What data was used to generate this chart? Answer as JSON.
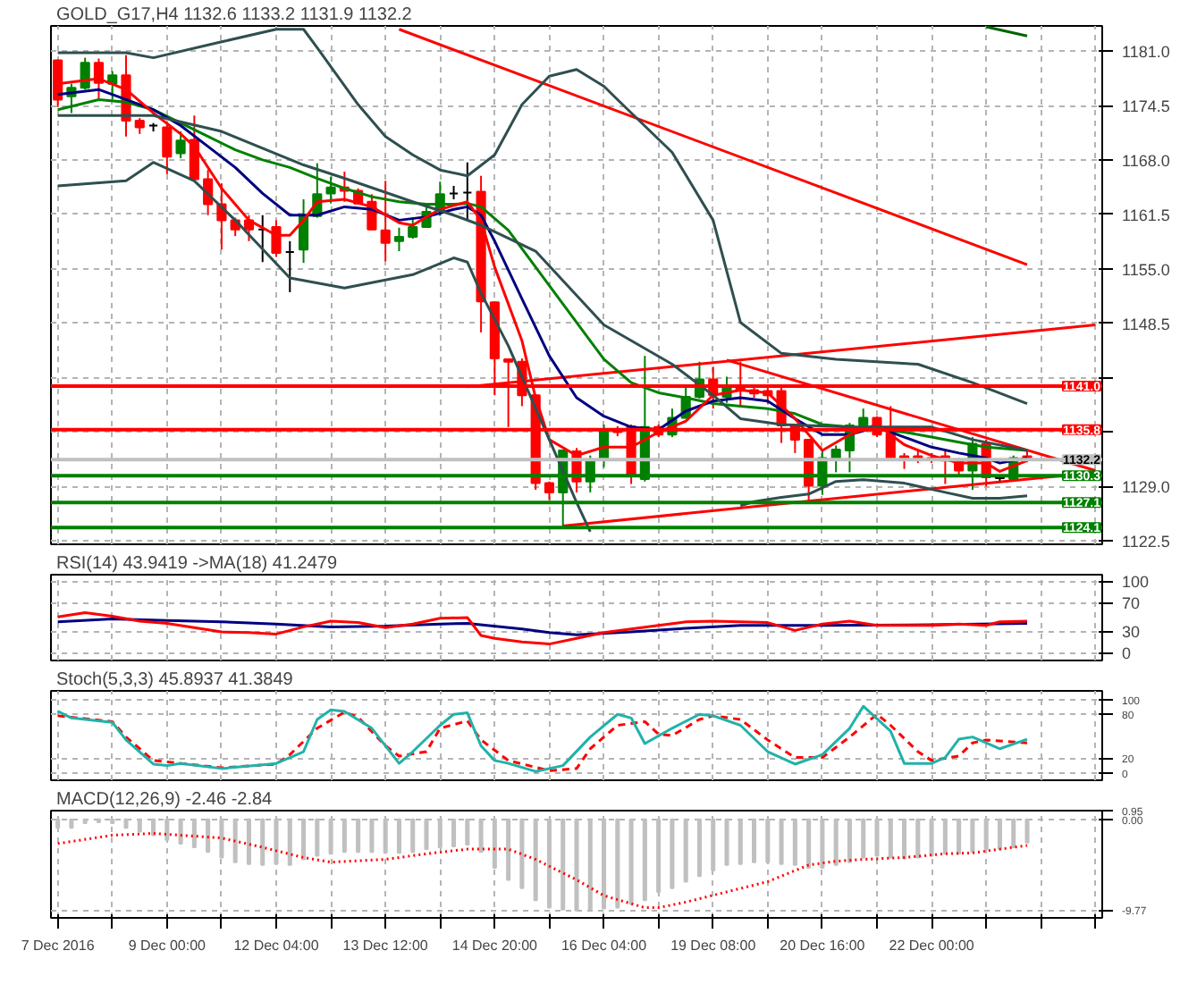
{
  "chart_data": [
    {
      "type": "candlestick",
      "title": "GOLD_G17,H4  1132.6 1133.2 1131.9 1132.2",
      "ohlc": [
        [
          1179.9,
          1180.0,
          1174.3,
          1175.2
        ],
        [
          1175.6,
          1177.1,
          1173.6,
          1176.6
        ],
        [
          1176.6,
          1180.2,
          1176.4,
          1179.6
        ],
        [
          1179.6,
          1180.1,
          1175.3,
          1177.2
        ],
        [
          1177.1,
          1178.6,
          1175.2,
          1178.1
        ],
        [
          1178.1,
          1180.5,
          1170.8,
          1172.7
        ],
        [
          1172.7,
          1173.0,
          1171.1,
          1171.9
        ],
        [
          1172.1,
          1172.4,
          1171.4,
          1172.1
        ],
        [
          1171.9,
          1172.4,
          1166.3,
          1168.4
        ],
        [
          1168.8,
          1171.4,
          1168.2,
          1170.3
        ],
        [
          1170.4,
          1173.3,
          1165.5,
          1165.7
        ],
        [
          1165.7,
          1166.8,
          1161.4,
          1162.7
        ],
        [
          1162.7,
          1165.2,
          1157.3,
          1160.8
        ],
        [
          1160.8,
          1161.1,
          1158.9,
          1159.7
        ],
        [
          1160.8,
          1161.4,
          1158.3,
          1159.7
        ],
        [
          1159.7,
          1161.4,
          1155.8,
          1159.7
        ],
        [
          1160.0,
          1160.8,
          1156.4,
          1156.9
        ],
        [
          1157.0,
          1158.3,
          1152.2,
          1157.0
        ],
        [
          1157.3,
          1163.3,
          1155.7,
          1161.3
        ],
        [
          1161.3,
          1167.6,
          1161.1,
          1163.9
        ],
        [
          1164.0,
          1166.0,
          1162.8,
          1164.7
        ],
        [
          1164.7,
          1166.6,
          1163.0,
          1164.3
        ],
        [
          1164.3,
          1164.6,
          1162.7,
          1162.8
        ],
        [
          1163.0,
          1163.9,
          1159.6,
          1159.7
        ],
        [
          1159.6,
          1165.5,
          1155.9,
          1158.1
        ],
        [
          1158.3,
          1159.9,
          1157.1,
          1158.8
        ],
        [
          1158.8,
          1161.1,
          1158.6,
          1160.0
        ],
        [
          1160.0,
          1162.7,
          1159.9,
          1161.8
        ],
        [
          1161.9,
          1165.4,
          1161.3,
          1163.9
        ],
        [
          1164.0,
          1164.9,
          1163.3,
          1164.0
        ],
        [
          1164.1,
          1167.7,
          1160.8,
          1164.1
        ],
        [
          1164.2,
          1166.1,
          1147.4,
          1151.1
        ],
        [
          1151.0,
          1151.1,
          1139.9,
          1144.3
        ],
        [
          1144.2,
          1144.3,
          1136.1,
          1143.9
        ],
        [
          1143.9,
          1144.3,
          1138.6,
          1139.9
        ],
        [
          1139.9,
          1139.9,
          1128.6,
          1129.4
        ],
        [
          1129.4,
          1129.6,
          1127.4,
          1128.3
        ],
        [
          1128.3,
          1133.3,
          1124.2,
          1133.3
        ],
        [
          1133.2,
          1133.6,
          1128.3,
          1129.6
        ],
        [
          1129.6,
          1132.7,
          1128.3,
          1132.2
        ],
        [
          1132.2,
          1136.4,
          1131.3,
          1135.8
        ],
        [
          1135.8,
          1136.2,
          1135.0,
          1135.5
        ],
        [
          1136.2,
          1136.4,
          1129.3,
          1130.2
        ],
        [
          1129.9,
          1144.6,
          1129.6,
          1136.1
        ],
        [
          1136.1,
          1136.4,
          1134.9,
          1135.2
        ],
        [
          1135.2,
          1138.3,
          1134.9,
          1137.2
        ],
        [
          1137.2,
          1140.8,
          1137.1,
          1139.7
        ],
        [
          1139.7,
          1143.9,
          1139.5,
          1141.8
        ],
        [
          1141.8,
          1143.3,
          1138.3,
          1139.9
        ],
        [
          1139.7,
          1142.1,
          1139.0,
          1141.1
        ],
        [
          1141.0,
          1143.9,
          1138.6,
          1140.5
        ],
        [
          1140.5,
          1141.1,
          1139.6,
          1140.1
        ],
        [
          1140.4,
          1141.1,
          1138.9,
          1139.9
        ],
        [
          1140.4,
          1140.8,
          1134.2,
          1136.3
        ],
        [
          1136.3,
          1136.4,
          1133.0,
          1134.6
        ],
        [
          1134.6,
          1134.7,
          1127.2,
          1129.1
        ],
        [
          1129.1,
          1133.3,
          1128.0,
          1132.4
        ],
        [
          1132.4,
          1133.9,
          1130.7,
          1133.4
        ],
        [
          1133.3,
          1136.6,
          1130.7,
          1136.3
        ],
        [
          1136.3,
          1138.3,
          1136.1,
          1137.2
        ],
        [
          1137.2,
          1137.4,
          1134.9,
          1135.2
        ],
        [
          1135.3,
          1138.6,
          1132.1,
          1132.4
        ],
        [
          1132.6,
          1133.0,
          1131.1,
          1132.4
        ],
        [
          1132.6,
          1133.2,
          1131.8,
          1132.2
        ],
        [
          1132.4,
          1133.0,
          1131.8,
          1132.2
        ],
        [
          1132.6,
          1133.4,
          1129.3,
          1132.1
        ],
        [
          1132.1,
          1132.4,
          1130.3,
          1130.9
        ],
        [
          1130.9,
          1134.9,
          1128.6,
          1134.1
        ],
        [
          1134.1,
          1134.6,
          1129.0,
          1130.1
        ],
        [
          1130.0,
          1130.2,
          1129.6,
          1130.1
        ],
        [
          1129.9,
          1132.7,
          1129.6,
          1132.4
        ],
        [
          1132.6,
          1133.2,
          1131.9,
          1132.2
        ],
        null,
        null,
        null,
        null,
        null
      ],
      "colors": [
        "#ff0000",
        "#008000",
        "#008000",
        "#ff0000",
        "#008000",
        "#ff0000",
        "#ff0000",
        "#000000",
        "#ff0000",
        "#008000",
        "#ff0000",
        "#ff0000",
        "#ff0000",
        "#ff0000",
        "#ff0000",
        "#000000",
        "#ff0000",
        "#000000",
        "#008000",
        "#008000",
        "#008000",
        "#ff0000",
        "#ff0000",
        "#ff0000",
        "#ff0000",
        "#008000",
        "#008000",
        "#008000",
        "#008000",
        "#000000",
        "#000000",
        "#ff0000",
        "#ff0000",
        "#ff0000",
        "#ff0000",
        "#ff0000",
        "#ff0000",
        "#008000",
        "#ff0000",
        "#008000",
        "#008000",
        "#ff0000",
        "#ff0000",
        "#008000",
        "#ff0000",
        "#008000",
        "#008000",
        "#008000",
        "#ff0000",
        "#008000",
        "#ff0000",
        "#ff0000",
        "#ff0000",
        "#ff0000",
        "#ff0000",
        "#ff0000",
        "#008000",
        "#008000",
        "#008000",
        "#008000",
        "#ff0000",
        "#ff0000",
        "#ff0000",
        "#ff0000",
        "#ff0000",
        "#ff0000",
        "#ff0000",
        "#008000",
        "#ff0000",
        "#000000",
        "#008000",
        "#ff0000",
        null,
        null,
        null,
        null,
        null
      ],
      "series": [
        {
          "type": "line",
          "color": "#2f4f4f",
          "values": [
            1180.8,
            null,
            null,
            null,
            null,
            1180.8,
            null,
            1180.2,
            null,
            null,
            null,
            null,
            1182.1,
            null,
            null,
            null,
            1183.6,
            null,
            1183.6,
            1181.4,
            null,
            null,
            1174.6,
            null,
            1170.8,
            null,
            1168.6,
            null,
            1166.8,
            null,
            1166.1,
            null,
            1168.6,
            null,
            1174.6,
            null,
            1178.0,
            null,
            1178.8,
            null,
            1176.8,
            1175.2,
            null,
            null,
            null,
            1168.9,
            null,
            null,
            1160.8,
            null,
            1148.6,
            null,
            null,
            1144.9,
            null,
            null,
            null,
            1144.2,
            null,
            null,
            null,
            null,
            null,
            1143.6,
            null,
            null,
            null,
            1141.4,
            null,
            null,
            null,
            1138.9,
            null,
            null,
            null,
            null,
            null
          ]
        },
        {
          "type": "line",
          "color": "#2f4f4f",
          "values": [
            1173.3,
            null,
            null,
            null,
            null,
            null,
            null,
            1173.3,
            null,
            null,
            null,
            null,
            1171.4,
            null,
            null,
            null,
            null,
            null,
            1167.4,
            null,
            null,
            1165.8,
            null,
            null,
            null,
            null,
            1163.0,
            null,
            null,
            1161.4,
            null,
            1160.2,
            null,
            null,
            null,
            1157.1,
            null,
            null,
            null,
            null,
            1148.3,
            null,
            null,
            null,
            null,
            1143.6,
            null,
            null,
            1139.9,
            null,
            1137.1,
            null,
            null,
            1136.4,
            null,
            null,
            null,
            null,
            1136.1,
            null,
            null,
            null,
            null,
            null,
            1136.1,
            null,
            null,
            1134.6,
            null,
            null,
            null,
            1133.3,
            null,
            null,
            null,
            null,
            null
          ]
        },
        {
          "type": "line",
          "color": "#2f4f4f",
          "values": [
            1164.9,
            null,
            null,
            null,
            null,
            1165.5,
            null,
            1167.7,
            null,
            null,
            1165.5,
            null,
            null,
            1160.8,
            null,
            null,
            null,
            1153.9,
            null,
            null,
            null,
            1152.7,
            null,
            null,
            null,
            null,
            1154.3,
            null,
            null,
            1156.3,
            1155.8,
            1152.1,
            null,
            1145.8,
            null,
            null,
            1134.6,
            null,
            1127.1,
            1123.6,
            null,
            null,
            null,
            null,
            null,
            null,
            null,
            null,
            null,
            null,
            null,
            null,
            null,
            null,
            null,
            null,
            null,
            null,
            null,
            null,
            null,
            null,
            null,
            null,
            null,
            null,
            null,
            null,
            null,
            null,
            null,
            null,
            null,
            null,
            null,
            null,
            null
          ]
        },
        {
          "type": "line",
          "color": "#2f4f4f",
          "values": [
            null,
            null,
            null,
            null,
            null,
            null,
            null,
            null,
            null,
            null,
            null,
            null,
            null,
            null,
            null,
            null,
            null,
            null,
            null,
            null,
            null,
            null,
            null,
            null,
            null,
            null,
            null,
            null,
            null,
            null,
            null,
            null,
            null,
            null,
            null,
            null,
            null,
            null,
            null,
            null,
            null,
            null,
            null,
            null,
            null,
            null,
            null,
            null,
            null,
            null,
            1126.7,
            1127.2,
            null,
            1127.7,
            null,
            1128.1,
            null,
            1129.6,
            null,
            1129.8,
            null,
            null,
            1129.4,
            null,
            null,
            1128.3,
            null,
            1127.6,
            null,
            1127.6,
            null,
            1127.9,
            null,
            null,
            null,
            null,
            null
          ]
        },
        {
          "type": "line",
          "color": "#ff0000",
          "values": [
            1177.1,
            null,
            null,
            1177.7,
            null,
            1176.4,
            null,
            1173.6,
            null,
            1171.1,
            1169.6,
            null,
            1164.6,
            null,
            1160.8,
            null,
            1159.0,
            1159.0,
            1160.8,
            1163.0,
            null,
            1163.3,
            null,
            1162.4,
            null,
            1160.5,
            1160.2,
            1161.2,
            1162.1,
            null,
            1163.0,
            1160.8,
            1155.2,
            null,
            1146.4,
            1139.6,
            1134.6,
            null,
            1132.7,
            null,
            1133.7,
            null,
            1133.7,
            null,
            1135.5,
            null,
            1136.8,
            null,
            1139.9,
            null,
            1140.5,
            null,
            1140.2,
            null,
            1137.1,
            null,
            1133.3,
            null,
            1135.2,
            null,
            1136.4,
            null,
            1134.0,
            null,
            1132.7,
            null,
            1131.8,
            null,
            1131.8,
            1130.8,
            null,
            1132.1,
            null,
            null,
            null,
            null,
            null
          ]
        },
        {
          "type": "line",
          "color": "#000080",
          "values": [
            1175.8,
            null,
            null,
            1176.4,
            null,
            1175.2,
            null,
            1174.0,
            null,
            1172.1,
            null,
            1169.6,
            null,
            1167.1,
            null,
            1164.0,
            null,
            1161.4,
            null,
            1161.4,
            null,
            1162.4,
            null,
            1162.1,
            null,
            1160.8,
            null,
            1161.2,
            null,
            1162.1,
            1162.4,
            1161.4,
            1158.3,
            null,
            1151.4,
            null,
            1144.6,
            null,
            1139.6,
            null,
            1137.4,
            null,
            1136.1,
            null,
            1135.8,
            null,
            1138.0,
            null,
            1139.2,
            null,
            1139.6,
            null,
            1139.2,
            null,
            1137.1,
            null,
            1135.2,
            null,
            1135.2,
            null,
            1136.1,
            null,
            1134.9,
            null,
            1133.7,
            null,
            1133.0,
            null,
            1132.4,
            1131.8,
            null,
            1132.4,
            null,
            null,
            null,
            null,
            null
          ]
        },
        {
          "type": "line",
          "color": "#008000",
          "values": [
            1174.0,
            null,
            null,
            1175.2,
            null,
            1174.9,
            null,
            1174.0,
            null,
            1172.4,
            null,
            1170.8,
            null,
            1169.2,
            null,
            1168.0,
            null,
            1167.1,
            null,
            1165.8,
            null,
            1164.6,
            null,
            1163.6,
            null,
            1163.0,
            null,
            1162.7,
            null,
            1162.7,
            1162.8,
            1162.4,
            null,
            1159.6,
            null,
            1155.2,
            null,
            1150.8,
            null,
            1146.4,
            1144.2,
            null,
            1141.4,
            null,
            1140.2,
            null,
            1139.6,
            null,
            1138.9,
            null,
            1138.6,
            null,
            1138.3,
            null,
            1137.7,
            null,
            1136.4,
            null,
            1136.1,
            null,
            1135.8,
            null,
            1135.5,
            null,
            1134.9,
            null,
            1134.3,
            null,
            1133.7,
            null,
            null,
            1133.3,
            null,
            null,
            null,
            null,
            null
          ]
        },
        {
          "type": "line",
          "color": "#ff0000",
          "values": [
            null,
            null,
            null,
            null,
            null,
            null,
            null,
            null,
            null,
            null,
            null,
            null,
            null,
            null,
            null,
            null,
            null,
            null,
            null,
            null,
            null,
            null,
            null,
            null,
            null,
            1183.6,
            null,
            null,
            null,
            null,
            null,
            null,
            null,
            null,
            null,
            null,
            null,
            null,
            null,
            null,
            null,
            null,
            null,
            null,
            null,
            null,
            null,
            null,
            null,
            null,
            null,
            null,
            null,
            null,
            null,
            null,
            null,
            null,
            null,
            null,
            null,
            null,
            null,
            null,
            null,
            null,
            null,
            null,
            null,
            null,
            null,
            1155.5,
            null,
            null,
            null,
            null,
            null
          ]
        },
        {
          "type": "line",
          "color": "#ff0000",
          "values": [
            null,
            null,
            null,
            null,
            null,
            null,
            null,
            null,
            null,
            null,
            null,
            null,
            null,
            null,
            null,
            null,
            null,
            null,
            null,
            null,
            null,
            null,
            null,
            null,
            null,
            null,
            null,
            null,
            null,
            null,
            null,
            null,
            null,
            null,
            null,
            null,
            null,
            1124.3,
            null,
            null,
            null,
            null,
            null,
            null,
            null,
            null,
            null,
            null,
            null,
            null,
            null,
            null,
            null,
            null,
            null,
            null,
            null,
            null,
            null,
            null,
            null,
            null,
            null,
            null,
            null,
            null,
            null,
            null,
            null,
            null,
            null,
            null,
            null,
            null,
            null,
            null,
            1130.7
          ]
        },
        {
          "type": "line",
          "color": "#ff0000",
          "values": [
            null,
            null,
            null,
            null,
            null,
            null,
            null,
            null,
            null,
            null,
            null,
            null,
            null,
            null,
            null,
            null,
            null,
            null,
            null,
            null,
            null,
            null,
            null,
            null,
            null,
            null,
            null,
            null,
            null,
            null,
            1140.9,
            null,
            null,
            null,
            null,
            null,
            null,
            null,
            null,
            null,
            null,
            null,
            null,
            null,
            null,
            null,
            null,
            null,
            null,
            null,
            null,
            null,
            null,
            null,
            null,
            null,
            null,
            null,
            null,
            null,
            null,
            null,
            null,
            null,
            null,
            null,
            null,
            null,
            null,
            null,
            null,
            null,
            null,
            null,
            null,
            null,
            1148.3
          ]
        },
        {
          "type": "line",
          "color": "#ff0000",
          "values": [
            null,
            null,
            null,
            null,
            null,
            null,
            null,
            null,
            null,
            null,
            null,
            null,
            null,
            null,
            null,
            null,
            null,
            null,
            null,
            null,
            null,
            null,
            null,
            null,
            null,
            null,
            null,
            null,
            null,
            null,
            null,
            null,
            null,
            null,
            null,
            null,
            null,
            null,
            null,
            null,
            null,
            null,
            null,
            null,
            null,
            null,
            null,
            null,
            null,
            1144.1,
            null,
            null,
            null,
            null,
            null,
            null,
            null,
            null,
            null,
            null,
            null,
            null,
            null,
            null,
            null,
            null,
            null,
            null,
            null,
            null,
            null,
            null,
            null,
            null,
            null,
            null,
            1130.9
          ]
        },
        {
          "type": "line",
          "color": "#006400",
          "values": [
            null,
            null,
            null,
            null,
            null,
            null,
            null,
            null,
            null,
            null,
            null,
            null,
            null,
            null,
            null,
            null,
            null,
            null,
            null,
            null,
            null,
            null,
            null,
            null,
            null,
            null,
            null,
            null,
            null,
            null,
            null,
            null,
            null,
            null,
            null,
            null,
            null,
            null,
            null,
            null,
            null,
            null,
            null,
            null,
            null,
            null,
            null,
            null,
            null,
            null,
            null,
            null,
            null,
            null,
            null,
            null,
            null,
            null,
            null,
            null,
            null,
            null,
            null,
            null,
            null,
            null,
            null,
            null,
            1183.9,
            null,
            null,
            1182.8,
            null,
            null,
            null,
            null,
            null
          ]
        }
      ],
      "ref_lines": [
        {
          "axis": "y",
          "value": 1141.0,
          "label": "1141.0",
          "color": "#ff0000"
        },
        {
          "axis": "y",
          "value": 1135.8,
          "label": "1135.8",
          "color": "#ff0000"
        },
        {
          "axis": "y",
          "value": 1132.2,
          "label": "1132.2",
          "color": "#c0c0c0"
        },
        {
          "axis": "y",
          "value": 1130.3,
          "label": "1130.3",
          "color": "#008000"
        },
        {
          "axis": "y",
          "value": 1127.1,
          "label": "1127.1",
          "color": "#008000"
        },
        {
          "axis": "y",
          "value": 1124.1,
          "label": "1124.1",
          "color": "#008000"
        }
      ],
      "ylim": [
        1122.1,
        1184.0
      ],
      "yticks": [
        {
          "value": 1122.5,
          "label": "1122.5"
        },
        {
          "value": 1129,
          "label": "1129.0"
        },
        {
          "value": 1135.5,
          "label": null
        },
        {
          "value": 1142,
          "label": null
        },
        {
          "value": 1148.5,
          "label": "1148.5"
        },
        {
          "value": 1155,
          "label": "1155.0"
        },
        {
          "value": 1161.5,
          "label": "1161.5"
        },
        {
          "value": 1168,
          "label": "1168.0"
        },
        {
          "value": 1174.5,
          "label": "1174.5"
        },
        {
          "value": 1181,
          "label": "1181.0"
        }
      ],
      "tick_labels": "y",
      "grid": true
    },
    {
      "type": "line",
      "title": "RSI(14) 43.9419  ->MA(18) 41.2479",
      "series": [
        {
          "type": "line",
          "color": "#ff0000",
          "values": [
            50,
            null,
            56,
            null,
            51,
            null,
            44,
            null,
            41,
            null,
            35,
            null,
            29,
            null,
            28,
            null,
            26,
            null,
            36,
            null,
            44,
            null,
            42,
            null,
            35,
            null,
            40,
            null,
            48,
            null,
            49,
            24,
            20,
            null,
            15,
            null,
            12,
            null,
            20,
            null,
            28,
            null,
            33,
            null,
            38,
            null,
            43,
            null,
            44,
            null,
            43,
            null,
            42,
            null,
            31,
            null,
            40,
            null,
            44,
            null,
            38,
            null,
            38,
            null,
            38,
            null,
            40,
            null,
            38,
            43,
            null,
            44,
            null,
            null,
            null,
            null,
            null
          ]
        },
        {
          "type": "line",
          "color": "#000080",
          "values": [
            43,
            null,
            null,
            null,
            47,
            null,
            null,
            null,
            45,
            null,
            null,
            null,
            43,
            null,
            null,
            null,
            40,
            null,
            null,
            null,
            36,
            null,
            null,
            null,
            37,
            null,
            null,
            null,
            40,
            null,
            41,
            null,
            null,
            null,
            33,
            null,
            28,
            null,
            25,
            null,
            null,
            null,
            29,
            null,
            null,
            null,
            34,
            null,
            null,
            null,
            38,
            null,
            null,
            null,
            null,
            null,
            38,
            null,
            null,
            null,
            null,
            null,
            null,
            null,
            39,
            null,
            null,
            null,
            null,
            null,
            null,
            41,
            null,
            null,
            null,
            null,
            null
          ]
        }
      ],
      "ylim": [
        -11,
        109
      ],
      "yticks": [
        100,
        70,
        30,
        0
      ],
      "tick_labels": "y",
      "grid": true
    },
    {
      "type": "line",
      "title": "Stoch(5,3,3) 45.8937 41.3849",
      "series": [
        {
          "type": "line",
          "color": "#20b2aa",
          "values": [
            84,
            75,
            null,
            null,
            69,
            45,
            null,
            12,
            10,
            13,
            null,
            null,
            6,
            null,
            null,
            11,
            13,
            null,
            29,
            73,
            86,
            84,
            null,
            61,
            null,
            13,
            29,
            null,
            65,
            80,
            82,
            37,
            17,
            13,
            null,
            2,
            null,
            10,
            null,
            49,
            null,
            80,
            75,
            40,
            null,
            61,
            null,
            80,
            78,
            null,
            65,
            null,
            29,
            null,
            12,
            null,
            25,
            null,
            61,
            91,
            null,
            57,
            13,
            null,
            13,
            21,
            46,
            49,
            41,
            33,
            null,
            46,
            null,
            null,
            null,
            null,
            null
          ]
        },
        {
          "type": "line",
          "color": "#ff0000",
          "line_style": "dashed",
          "values": [
            78,
            76,
            null,
            null,
            70,
            49,
            null,
            17,
            null,
            13,
            null,
            null,
            7,
            null,
            null,
            null,
            12,
            25,
            null,
            61,
            null,
            83,
            76,
            null,
            37,
            23,
            null,
            29,
            61,
            null,
            71,
            45,
            null,
            17,
            null,
            null,
            3,
            null,
            6,
            33,
            null,
            65,
            null,
            70,
            53,
            51,
            null,
            73,
            78,
            null,
            73,
            null,
            45,
            null,
            21,
            null,
            21,
            null,
            49,
            null,
            80,
            65,
            null,
            29,
            17,
            null,
            23,
            41,
            45,
            null,
            null,
            41,
            null,
            null,
            null,
            null,
            null
          ]
        }
      ],
      "ylim": [
        -10,
        112
      ],
      "yticks": [
        100,
        80,
        20,
        0
      ],
      "tick_labels": "y",
      "grid": true
    },
    {
      "type": "bar",
      "title": "MACD(12,26,9) -2.46 -2.84",
      "color": "#c0c0c0",
      "categories": [
        "7 Dec 2016",
        null,
        null,
        null,
        null,
        null,
        null,
        null,
        "9 Dec 00:00",
        null,
        null,
        null,
        null,
        null,
        null,
        null,
        "12 Dec 04:00",
        null,
        null,
        null,
        null,
        null,
        null,
        null,
        "13 Dec 12:00",
        null,
        null,
        null,
        null,
        null,
        null,
        null,
        "14 Dec 20:00",
        null,
        null,
        null,
        null,
        null,
        null,
        null,
        "16 Dec 04:00",
        null,
        null,
        null,
        null,
        null,
        null,
        null,
        "19 Dec 08:00",
        null,
        null,
        null,
        null,
        null,
        null,
        null,
        "20 Dec 16:00",
        null,
        null,
        null,
        null,
        null,
        null,
        null,
        "22 Dec 00:00",
        null,
        null,
        null,
        null,
        null,
        null,
        null,
        null,
        null,
        null,
        null,
        null
      ],
      "values": [
        -0.9,
        -0.9,
        -0.4,
        -0.3,
        -0.4,
        -0.9,
        -1.3,
        -1.7,
        -2.2,
        -2.6,
        -3.0,
        -3.5,
        -4.1,
        -4.6,
        -4.8,
        -4.9,
        -4.8,
        -4.9,
        -4.3,
        -3.9,
        -3.7,
        -3.5,
        -3.5,
        -3.5,
        -3.6,
        -3.6,
        -3.5,
        -3.2,
        -3.0,
        -2.9,
        -2.7,
        -3.5,
        -5.2,
        -6.5,
        -7.4,
        -8.7,
        -9.5,
        -9.7,
        -9.8,
        -9.7,
        -9.6,
        -9.5,
        -9.1,
        -8.7,
        -7.8,
        -7.4,
        -6.7,
        -6.1,
        -5.5,
        -4.9,
        -4.8,
        -4.6,
        -4.6,
        -4.8,
        -4.9,
        -5.2,
        -5.2,
        -4.9,
        -4.6,
        -4.1,
        -3.9,
        -4.1,
        -4.2,
        -4.1,
        -3.9,
        -3.7,
        -3.7,
        -3.5,
        -3.2,
        -3.2,
        -3.0,
        -2.5,
        null,
        null,
        null,
        null,
        null
      ],
      "series": [
        {
          "type": "line",
          "color": "#ff0000",
          "line_style": "dotted",
          "values": [
            -2.6,
            null,
            null,
            null,
            -1.7,
            null,
            null,
            -1.5,
            null,
            null,
            null,
            null,
            -2.0,
            null,
            null,
            -3.0,
            null,
            null,
            -4.1,
            null,
            -4.6,
            null,
            null,
            null,
            -4.3,
            null,
            null,
            -3.7,
            null,
            null,
            -3.2,
            null,
            null,
            -3.2,
            null,
            -4.3,
            null,
            null,
            -6.5,
            null,
            -8.2,
            null,
            null,
            -9.5,
            -9.5,
            null,
            -8.9,
            null,
            null,
            -7.8,
            null,
            null,
            -6.7,
            null,
            null,
            -4.9,
            null,
            -4.5,
            null,
            -4.3,
            null,
            null,
            -4.1,
            null,
            null,
            -3.7,
            null,
            -3.6,
            null,
            null,
            null,
            -2.8,
            null,
            null,
            null,
            null,
            null
          ]
        }
      ],
      "ylim": [
        -10.6,
        0.95
      ],
      "yticks": [
        0.95,
        {
          "value": 0,
          "label": "0.00"
        },
        -9.77
      ],
      "grid": true
    }
  ]
}
